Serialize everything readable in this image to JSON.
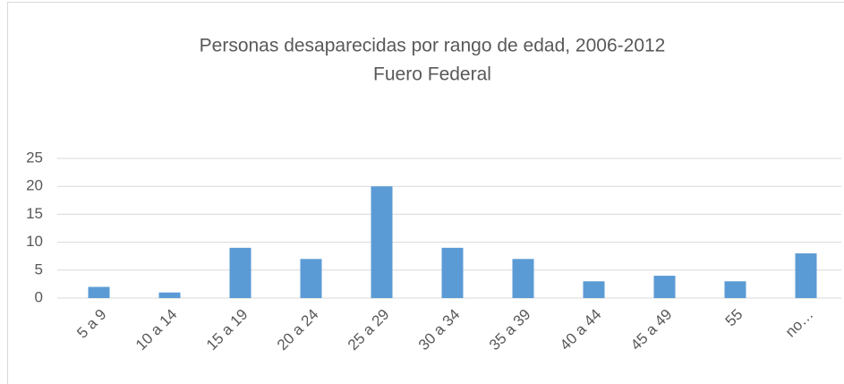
{
  "chart_data": {
    "type": "bar",
    "title": "Personas desaparecidas por rango de edad, 2006-2012",
    "subtitle": "Fuero Federal",
    "categories": [
      "5 a 9",
      "10 a 14",
      "15 a 19",
      "20 a 24",
      "25 a 29",
      "30 a 34",
      "35 a 39",
      "40 a 44",
      "45 a 49",
      "55",
      "no…"
    ],
    "values": [
      2,
      1,
      9,
      7,
      20,
      9,
      7,
      3,
      4,
      3,
      8
    ],
    "color": "#5b9bd5",
    "ylim": [
      0,
      25
    ],
    "yticks": [
      0,
      5,
      10,
      15,
      20,
      25
    ],
    "grid": true
  }
}
